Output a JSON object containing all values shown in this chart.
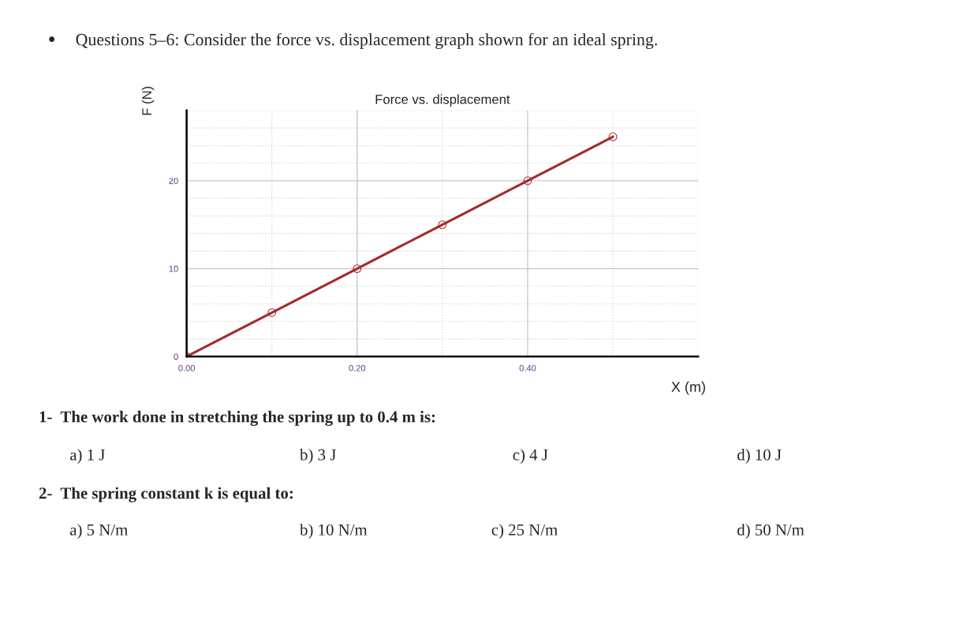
{
  "chart_data": {
    "type": "line",
    "title": "Force vs. displacement",
    "xlabel": "X (m)",
    "ylabel": "F (N)",
    "x": [
      0,
      0.1,
      0.2,
      0.3,
      0.4,
      0.5
    ],
    "series": [
      {
        "color": "#a52a2a",
        "values": [
          0,
          5,
          10,
          15,
          20,
          25
        ]
      }
    ],
    "marker": "circle",
    "line_style": "solid",
    "grid": true,
    "xlim": [
      0,
      0.6
    ],
    "ylim": [
      0,
      28
    ],
    "xticks": [
      {
        "value": 0,
        "label": "0.00"
      },
      {
        "value": 0.2,
        "label": "0.20"
      },
      {
        "value": 0.4,
        "label": "0.40"
      }
    ],
    "yticks": [
      0,
      10,
      20
    ],
    "annotations": [
      "•",
      "Questions 5–6: Consider the force vs. displacement graph shown for an ideal spring.",
      "1-  The work done in stretching the spring up to 0.4 m is:",
      "a) 1 J",
      "b) 3 J",
      "c) 4 J",
      "d) 10 J",
      "2-  The spring constant k is equal to:",
      "a) 5 N/m",
      "b) 10 N/m",
      "c) 25 N/m",
      "d) 50 N/m"
    ]
  }
}
